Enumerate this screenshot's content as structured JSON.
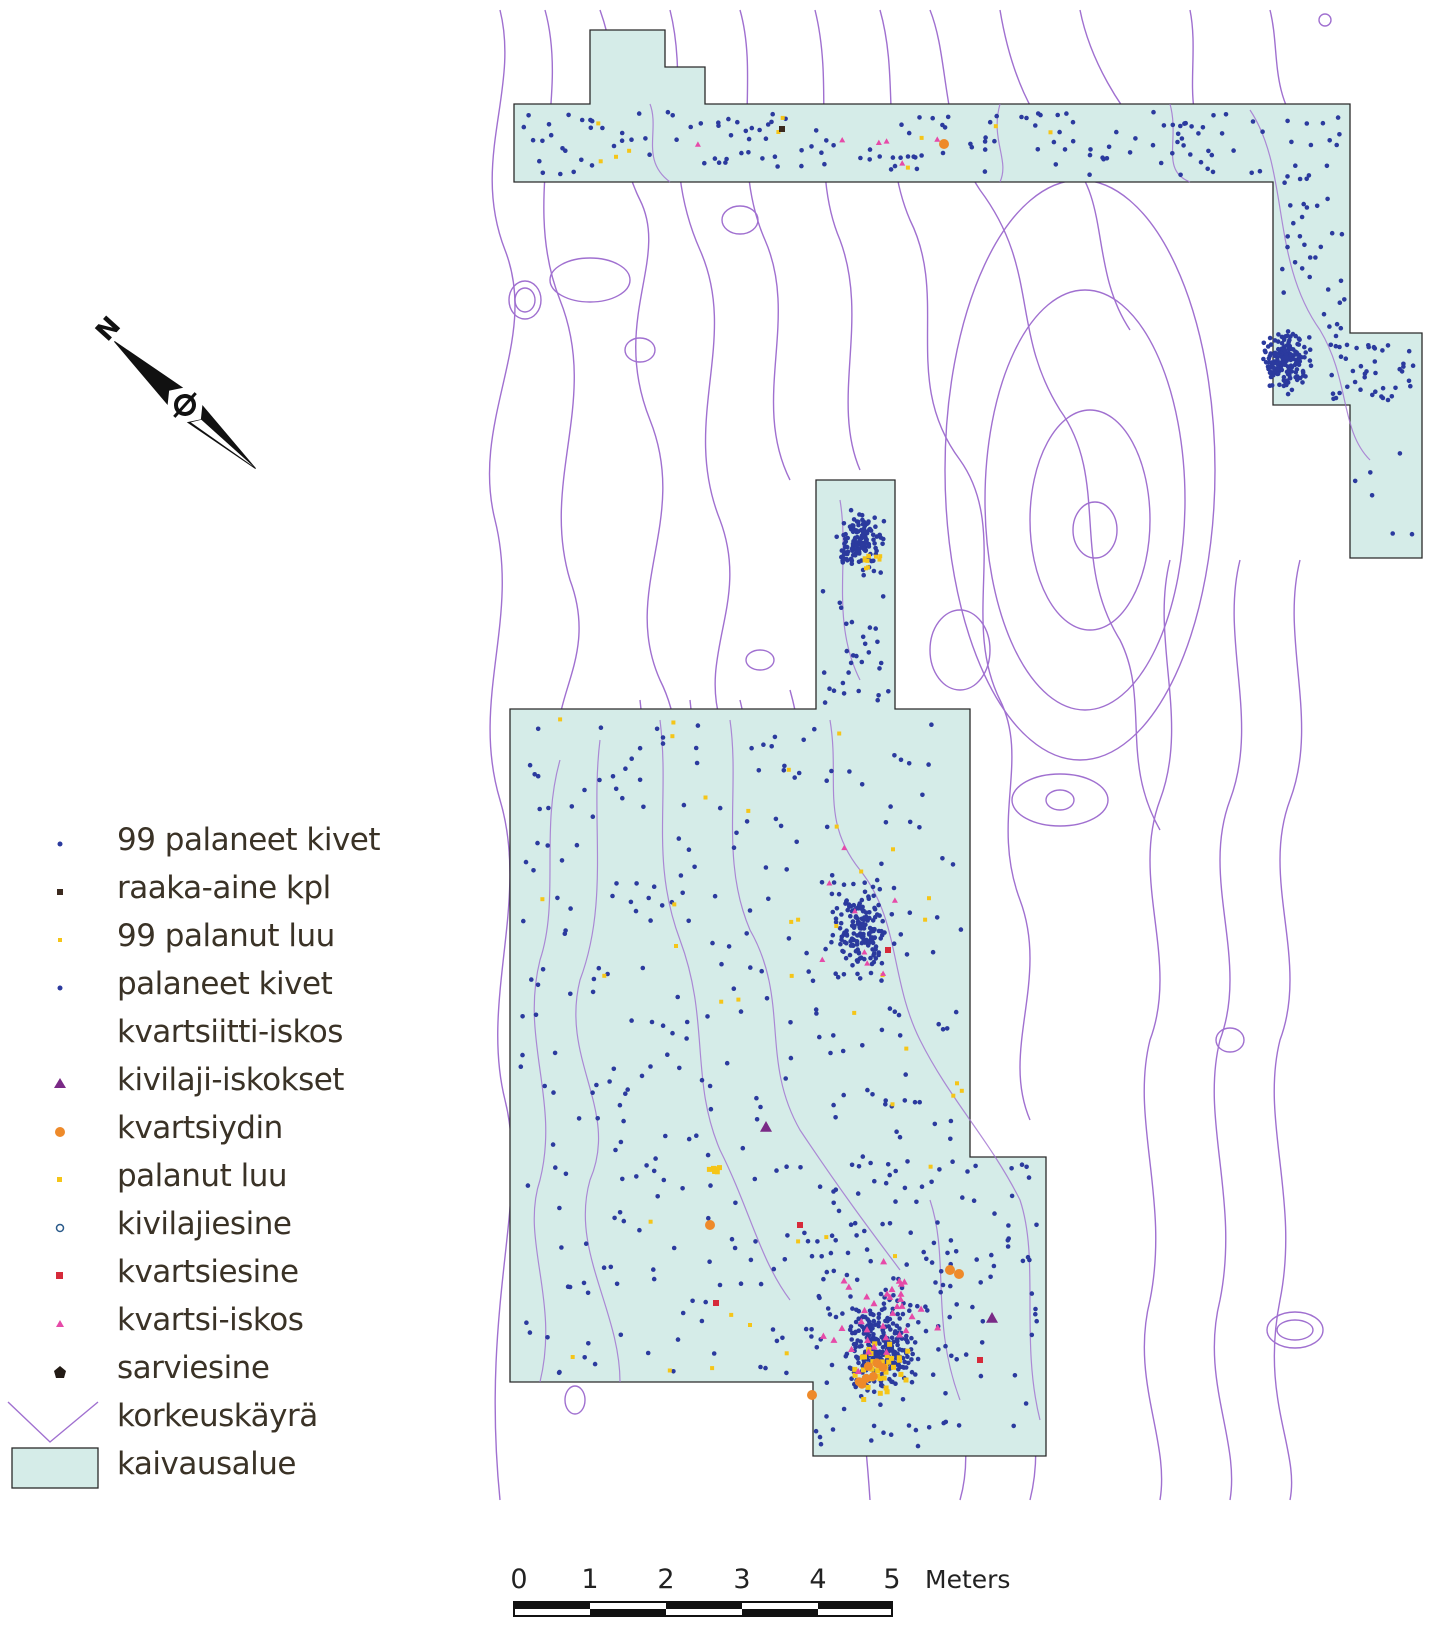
{
  "legend": {
    "items": [
      {
        "label": "99 palaneet kivet",
        "symbol": "dot",
        "color": "#2b3a9e"
      },
      {
        "label": "raaka-aine kpl",
        "symbol": "square",
        "color": "#3b2a1e"
      },
      {
        "label": "99 palanut luu",
        "symbol": "small-square",
        "color": "#f5c518"
      },
      {
        "label": "palaneet kivet",
        "symbol": "dot",
        "color": "#2b3a9e"
      },
      {
        "label": "kvartsiitti-iskos",
        "symbol": "none",
        "color": "#ffffff"
      },
      {
        "label": "kivilaji-iskokset",
        "symbol": "triangle",
        "color": "#7a2a86"
      },
      {
        "label": "kvartsiydin",
        "symbol": "circle",
        "color": "#ee8a2a"
      },
      {
        "label": "palanut luu",
        "symbol": "small-square",
        "color": "#f5c518"
      },
      {
        "label": "kivilajiesine",
        "symbol": "ring",
        "color": "#2a8a7a"
      },
      {
        "label": "kvartsiesine",
        "symbol": "square",
        "color": "#d62a3a"
      },
      {
        "label": "kvartsi-iskos",
        "symbol": "triangle",
        "color": "#e64aa8"
      },
      {
        "label": "sarviesine",
        "symbol": "pentagon",
        "color": "#221a14"
      },
      {
        "label": "korkeuskäyrä",
        "symbol": "contour-line",
        "color": "#a070d0"
      },
      {
        "label": "kaivausalue",
        "symbol": "area",
        "color": "#d5ece8"
      }
    ]
  },
  "north_arrow": {
    "label": "N"
  },
  "scale_bar": {
    "ticks": [
      "0",
      "1",
      "2",
      "3",
      "4",
      "5"
    ],
    "unit": "Meters"
  },
  "colors": {
    "excavation_fill": "#d5ece8",
    "contour": "#a070d0",
    "stone": "#2b3a9e",
    "bone": "#f5c518",
    "quartz_flake": "#e64aa8",
    "quartz_core": "#ee8a2a",
    "quartz_object": "#d62a3a",
    "rock_flake": "#7a2a86"
  }
}
